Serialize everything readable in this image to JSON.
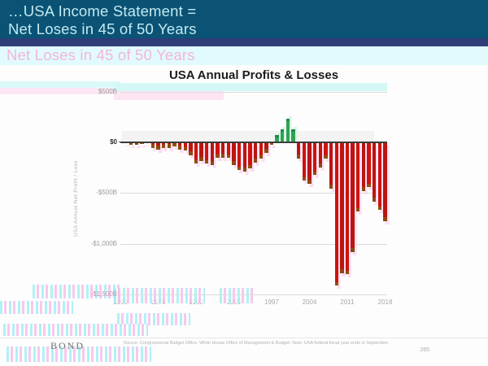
{
  "header": {
    "title_line1": "…USA Income Statement =",
    "title_line2": "Net Loses in 45 of 50 Years",
    "ghost_text": "Net Loses in 45 of 50 Years"
  },
  "chart_data": {
    "type": "bar",
    "title": "USA Annual Profits & Losses",
    "ylabel": "USA Annual Net Profit / Loss",
    "units": "$B",
    "x": [
      1969,
      1970,
      1971,
      1972,
      1973,
      1974,
      1975,
      1976,
      1977,
      1978,
      1979,
      1980,
      1981,
      1982,
      1983,
      1984,
      1985,
      1986,
      1987,
      1988,
      1989,
      1990,
      1991,
      1992,
      1993,
      1994,
      1995,
      1996,
      1997,
      1998,
      1999,
      2000,
      2001,
      2002,
      2003,
      2004,
      2005,
      2006,
      2007,
      2008,
      2009,
      2010,
      2011,
      2012,
      2013,
      2014,
      2015,
      2016,
      2017,
      2018
    ],
    "values": [
      3.2,
      -2.8,
      -23.0,
      -23.4,
      -14.9,
      -6.1,
      -53.2,
      -73.7,
      -53.7,
      -59.2,
      -40.7,
      -73.8,
      -79.0,
      -128.0,
      -207.8,
      -185.4,
      -212.3,
      -221.2,
      -149.7,
      -155.2,
      -152.6,
      -221.0,
      -269.2,
      -290.3,
      -255.1,
      -203.2,
      -164.0,
      -107.4,
      -21.9,
      69.3,
      125.6,
      236.2,
      128.2,
      -157.8,
      -377.6,
      -412.7,
      -318.3,
      -248.2,
      -160.7,
      -458.6,
      -1412.7,
      -1294.4,
      -1299.6,
      -1087.0,
      -679.5,
      -484.6,
      -438.5,
      -584.7,
      -665.4,
      -779.0
    ],
    "x_tick_labels": [
      "1969",
      "1976",
      "1983",
      "1990",
      "1997",
      "2004",
      "2011",
      "2018"
    ],
    "y_tick_labels": [
      "$500B",
      "$0",
      "-$500B",
      "-$1,000B",
      "-$1,500B"
    ],
    "y_tick_values": [
      500,
      0,
      -500,
      -1000,
      -1500
    ],
    "ylim": [
      -1500,
      500
    ],
    "grid": true,
    "legend": false,
    "positive_color": "#2fa352",
    "negative_color": "#cd130c"
  },
  "colors": {
    "header_bg": "#0a5375",
    "header_accent_band": "#2d3e79",
    "header_text": "#c3e9f0",
    "artifact_cyan": "#d3f8f6",
    "artifact_pink": "#fde4f3",
    "ghost_text_pink": "#f3b6d4"
  },
  "footer": {
    "logo": "BOND",
    "source": "Source: Congressional Budget Office, White House Office of Management & Budget.  Note: USA federal fiscal year ends in September.",
    "page_number": "265"
  }
}
